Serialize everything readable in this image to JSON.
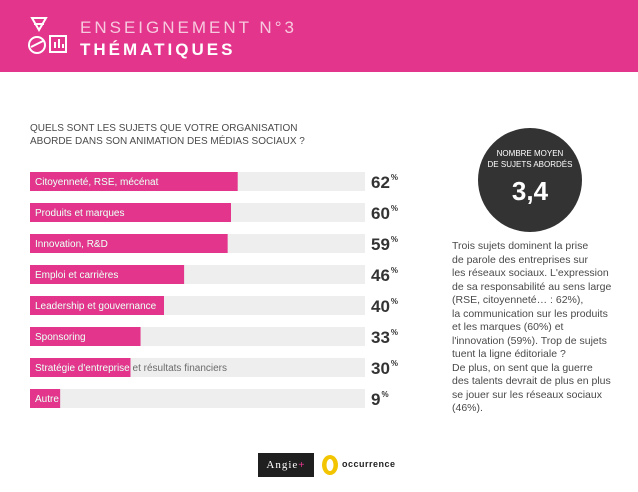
{
  "header": {
    "title_line1": "ENSEIGNEMENT N°3",
    "title_line2": "THÉMATIQUES",
    "logo_icon": "education-shapes-icon",
    "background_color": "#e3358c"
  },
  "question": {
    "line1": "QUELS SONT LES SUJETS QUE VOTRE ORGANISATION",
    "line2": "ABORDE DANS SON ANIMATION DES MÉDIAS SOCIAUX ?"
  },
  "chart_data": {
    "type": "bar",
    "orientation": "horizontal",
    "title": "",
    "xlabel": "",
    "ylabel": "",
    "xlim": [
      0,
      100
    ],
    "grid": false,
    "categories": [
      "Citoyenneté, RSE, mécénat",
      "Produits et marques",
      "Innovation, R&D",
      "Emploi et carrières",
      "Leadership et gouvernance",
      "Sponsoring",
      "Stratégie d'entreprise et résultats financiers",
      "Autre"
    ],
    "values": [
      62,
      60,
      59,
      46,
      40,
      33,
      30,
      9
    ],
    "value_labels": [
      "62",
      "60",
      "59",
      "46",
      "40",
      "33",
      "30",
      "9"
    ],
    "unit": "%",
    "bar_color": "#e3358c",
    "track_color": "#eeeeee"
  },
  "kpi": {
    "label_line1": "NOMBRE MOYEN",
    "label_line2": "DE SUJETS ABORDÉS",
    "value": "3,4",
    "circle_color": "#333333"
  },
  "commentary": {
    "lines": [
      "Trois sujets dominent la prise",
      "de parole des entreprises sur",
      "les réseaux sociaux. L'expression",
      "de sa responsabilité au sens large",
      "(RSE, citoyenneté… : 62%),",
      "la communication sur les produits",
      "et les marques (60%) et",
      "l'innovation (59%). Trop de sujets",
      "tuent la ligne éditoriale ?",
      "De plus, on sent que la guerre",
      "des talents devrait de plus en plus",
      "se jouer sur les réseaux sociaux",
      "(46%)."
    ]
  },
  "footer": {
    "angie_text": "Angie",
    "angie_plus": "+",
    "occurrence_text": "occurrence",
    "occurrence_icon": "occurrence-logo-icon"
  }
}
